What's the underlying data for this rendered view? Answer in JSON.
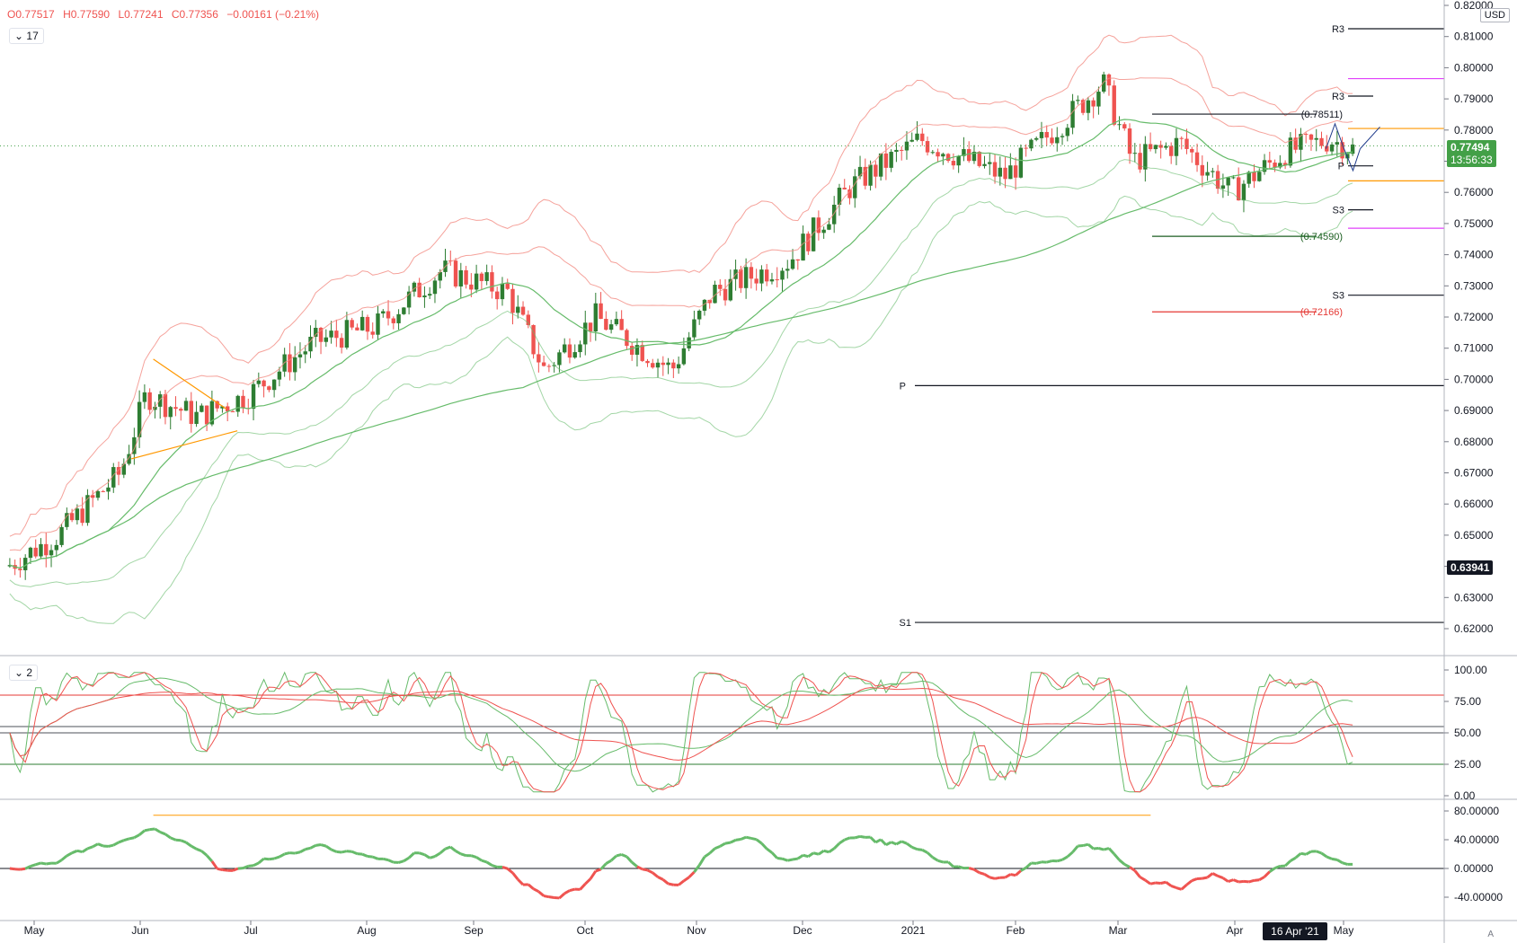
{
  "header": {
    "open": "O0.77517",
    "high": "H0.77590",
    "low": "L0.77241",
    "close": "C0.77356",
    "change": "−0.00161 (−0.21%)",
    "interval_box": "17",
    "currency": "USD"
  },
  "price_axis": {
    "ticks": [
      "0.82000",
      "0.81000",
      "0.80000",
      "0.79000",
      "0.78000",
      "0.77000",
      "0.76000",
      "0.75000",
      "0.74000",
      "0.73000",
      "0.72000",
      "0.71000",
      "0.70000",
      "0.69000",
      "0.68000",
      "0.67000",
      "0.66000",
      "0.65000",
      "0.64000",
      "0.63000",
      "0.62000"
    ],
    "last_price": "0.77494",
    "countdown": "13:56:33",
    "crosshair_price": "0.63941"
  },
  "stoch_panel": {
    "label": "2",
    "ticks": [
      "100.00",
      "75.00",
      "50.00",
      "25.00",
      "0.00"
    ]
  },
  "momentum_panel": {
    "ticks": [
      "80.00000",
      "40.00000",
      "0.00000",
      "-40.00000"
    ]
  },
  "time_axis": {
    "labels": [
      "May",
      "Jun",
      "Jul",
      "Aug",
      "Sep",
      "Oct",
      "Nov",
      "Dec",
      "2021",
      "Feb",
      "Mar",
      "Apr",
      "May"
    ],
    "crosshair_date": "16 Apr '21",
    "corner": "A"
  },
  "pivot_labels": {
    "r3_far": "R3",
    "r3_near": "R3",
    "p_near": "P",
    "s3_near": "S3",
    "s3_far": "S3",
    "p_far": "P",
    "s1_far": "S1",
    "high_mark": "(0.78511)",
    "low_mark": "(0.74590)",
    "red_mark": "(0.72166)"
  },
  "colors": {
    "bull": "#26a69a",
    "bull_candle": "#2e7d32",
    "bear": "#ef5350",
    "ma_green": "#66bb6a",
    "band_red": "#f28b82",
    "orange": "#ff9800",
    "magenta": "#e040fb"
  },
  "chart_data": {
    "type": "candlestick",
    "title": "",
    "x_range": [
      "May 2020",
      "May 2021"
    ],
    "ylim": [
      0.615,
      0.82
    ],
    "close_path_approx": [
      {
        "date": "2020-05-01",
        "value": 0.64
      },
      {
        "date": "2020-05-15",
        "value": 0.65
      },
      {
        "date": "2020-06-01",
        "value": 0.67
      },
      {
        "date": "2020-06-08",
        "value": 0.695
      },
      {
        "date": "2020-06-22",
        "value": 0.688
      },
      {
        "date": "2020-07-06",
        "value": 0.695
      },
      {
        "date": "2020-07-24",
        "value": 0.712
      },
      {
        "date": "2020-08-10",
        "value": 0.717
      },
      {
        "date": "2020-08-28",
        "value": 0.735
      },
      {
        "date": "2020-09-15",
        "value": 0.728
      },
      {
        "date": "2020-09-25",
        "value": 0.703
      },
      {
        "date": "2020-10-09",
        "value": 0.72
      },
      {
        "date": "2020-10-30",
        "value": 0.703
      },
      {
        "date": "2020-11-10",
        "value": 0.728
      },
      {
        "date": "2020-12-01",
        "value": 0.738
      },
      {
        "date": "2020-12-18",
        "value": 0.762
      },
      {
        "date": "2021-01-06",
        "value": 0.777
      },
      {
        "date": "2021-01-29",
        "value": 0.765
      },
      {
        "date": "2021-02-25",
        "value": 0.795
      },
      {
        "date": "2021-03-05",
        "value": 0.77
      },
      {
        "date": "2021-03-18",
        "value": 0.776
      },
      {
        "date": "2021-04-01",
        "value": 0.76
      },
      {
        "date": "2021-04-16",
        "value": 0.773
      },
      {
        "date": "2021-04-28",
        "value": 0.777
      },
      {
        "date": "2021-05-05",
        "value": 0.7736
      }
    ],
    "horizontal_levels": [
      {
        "label": "R3",
        "value": 0.8125
      },
      {
        "label": "R3",
        "value": 0.7909
      },
      {
        "label": "P",
        "value": 0.7685
      },
      {
        "label": "S3",
        "value": 0.7544
      },
      {
        "label": "S3",
        "value": 0.727
      },
      {
        "label": "P",
        "value": 0.698
      },
      {
        "label": "S1",
        "value": 0.622
      },
      {
        "label": "(0.78511)",
        "value": 0.78511
      },
      {
        "label": "(0.74590)",
        "value": 0.7459
      },
      {
        "label": "(0.72166)",
        "value": 0.72166
      }
    ],
    "stochastic": {
      "ylim": [
        0,
        100
      ],
      "levels": [
        80,
        55,
        50,
        25
      ]
    },
    "momentum": {
      "ylim": [
        -60,
        90
      ],
      "zero_line": 0
    }
  }
}
